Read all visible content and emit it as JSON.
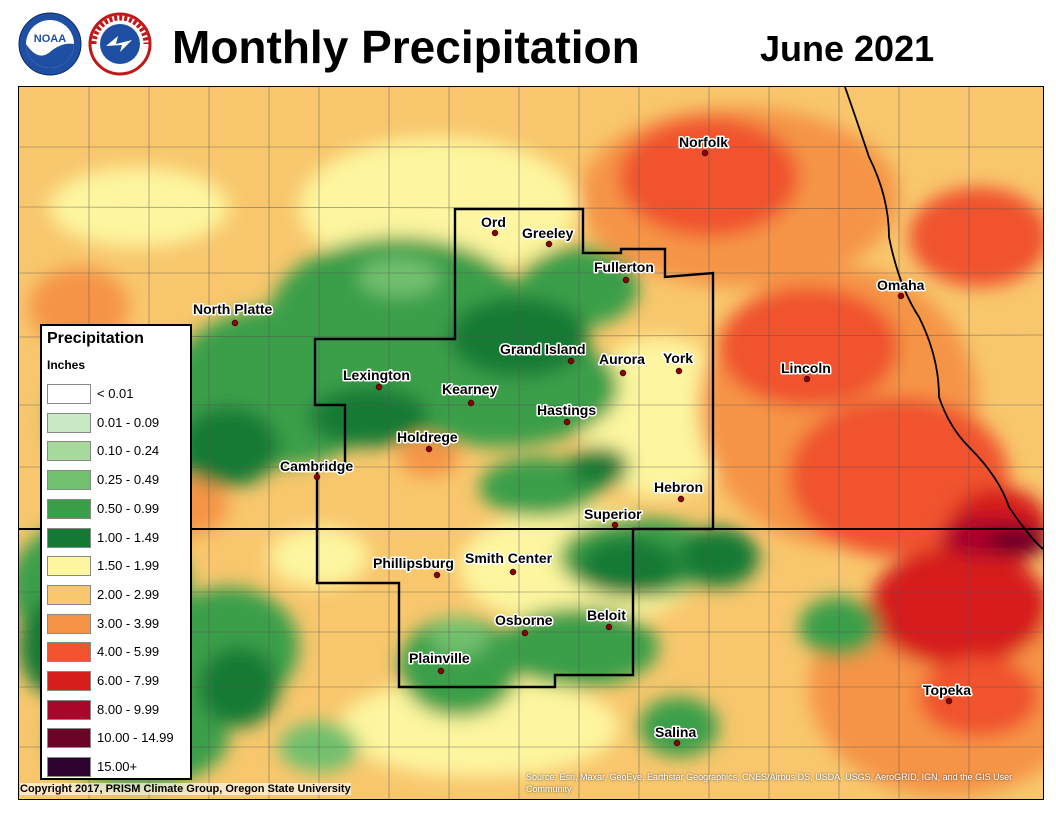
{
  "header": {
    "title": "Monthly Precipitation",
    "date": "June 2021"
  },
  "legend": {
    "title": "Precipitation",
    "units": "Inches",
    "items": [
      {
        "label": "< 0.01",
        "color": "#ffffff"
      },
      {
        "label": "0.01 - 0.09",
        "color": "#c9e9c4"
      },
      {
        "label": "0.10 - 0.24",
        "color": "#a6d99b"
      },
      {
        "label": "0.25 - 0.49",
        "color": "#71c06d"
      },
      {
        "label": "0.50 - 0.99",
        "color": "#3a9f48"
      },
      {
        "label": "1.00 - 1.49",
        "color": "#137a35"
      },
      {
        "label": "1.50 - 1.99",
        "color": "#fdf59f"
      },
      {
        "label": "2.00 - 2.99",
        "color": "#f8c76d"
      },
      {
        "label": "3.00 - 3.99",
        "color": "#f59446"
      },
      {
        "label": "4.00 - 5.99",
        "color": "#f0532e"
      },
      {
        "label": "6.00 - 7.99",
        "color": "#d61f1d"
      },
      {
        "label": "8.00 - 9.99",
        "color": "#a8062a"
      },
      {
        "label": "10.00 - 14.99",
        "color": "#6b0426"
      },
      {
        "label": "15.00+",
        "color": "#2e0330"
      }
    ]
  },
  "cities": [
    {
      "name": "Norfolk"
    },
    {
      "name": "Ord"
    },
    {
      "name": "Greeley"
    },
    {
      "name": "Fullerton"
    },
    {
      "name": "Omaha"
    },
    {
      "name": "North Platte"
    },
    {
      "name": "Grand Island"
    },
    {
      "name": "Aurora"
    },
    {
      "name": "York"
    },
    {
      "name": "Lincoln"
    },
    {
      "name": "Lexington"
    },
    {
      "name": "Kearney"
    },
    {
      "name": "Hastings"
    },
    {
      "name": "Holdrege"
    },
    {
      "name": "Cambridge"
    },
    {
      "name": "Hebron"
    },
    {
      "name": "Superior"
    },
    {
      "name": "Phillipsburg"
    },
    {
      "name": "Smith Center"
    },
    {
      "name": "Osborne"
    },
    {
      "name": "Beloit"
    },
    {
      "name": "Plainville"
    },
    {
      "name": "Topeka"
    },
    {
      "name": "Salina"
    }
  ],
  "footer": {
    "copyright": "Copyright 2017, PRISM Climate Group, Oregon State University",
    "source": "Source: Esri, Maxar, GeoEye, Earthstar Geographics, CNES/Airbus DS, USDA, USGS, AeroGRID, IGN, and the GIS User Community"
  },
  "logos": {
    "noaa": "NOAA",
    "nws": "NATIONAL WEATHER SERVICE"
  }
}
